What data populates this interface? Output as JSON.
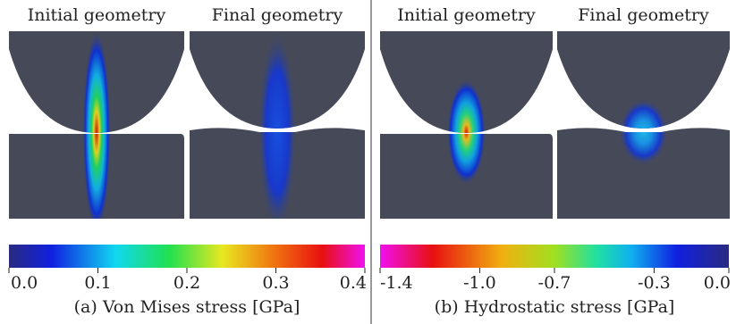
{
  "panels": [
    {
      "titles": [
        "Initial geometry",
        "Final geometry"
      ],
      "colorbar": {
        "lim": [
          0,
          0.4
        ],
        "ticks": [
          {
            "value": 0,
            "label": "0.0"
          },
          0.1,
          0.2,
          0.3,
          0.4
        ]
      },
      "caption": "(a) Von Mises stress [GPa]"
    },
    {
      "titles": [
        "Initial geometry",
        "Final geometry"
      ],
      "colorbar": {
        "lim": [
          -1.4,
          0
        ],
        "ticks": [
          -1.4,
          {
            "value": -1,
            "label": "-1.0"
          },
          -0.7,
          -0.3,
          {
            "value": 0,
            "label": "0.0"
          }
        ]
      },
      "caption": "(b) Hydrostatic stress [GPa]"
    }
  ]
}
